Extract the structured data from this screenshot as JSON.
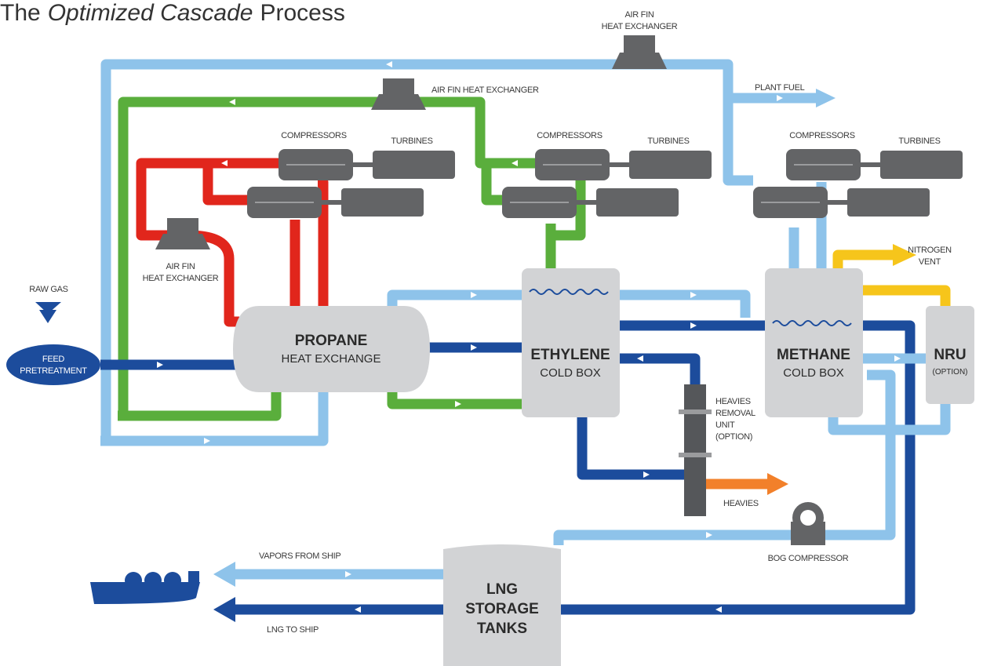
{
  "title": {
    "lead": "The",
    "emphasis": "Optimized Cascade",
    "tail": "Process"
  },
  "labels": {
    "air_fin_top": [
      "AIR FIN",
      "HEAT EXCHANGER"
    ],
    "air_fin_middle": "AIR FIN HEAT EXCHANGER",
    "air_fin_left": [
      "AIR FIN",
      "HEAT EXCHANGER"
    ],
    "plant_fuel": "PLANT FUEL",
    "compressors": [
      "COMPRESSORS",
      "COMPRESSORS",
      "COMPRESSORS"
    ],
    "turbines": [
      "TURBINES",
      "TURBINES",
      "TURBINES"
    ],
    "nitrogen_vent": [
      "NITROGEN",
      "VENT"
    ],
    "raw_gas": "RAW GAS",
    "feed_pretreatment": [
      "FEED",
      "PRETREATMENT"
    ],
    "heavies_removal": [
      "HEAVIES",
      "REMOVAL",
      "UNIT",
      "(OPTION)"
    ],
    "heavies": "HEAVIES",
    "bog_compressor": "BOG COMPRESSOR",
    "vapors_from_ship": "VAPORS FROM SHIP",
    "lng_to_ship": "LNG TO SHIP"
  },
  "units": {
    "propane": [
      "PROPANE",
      "HEAT EXCHANGE"
    ],
    "ethylene": [
      "ETHYLENE",
      "COLD BOX"
    ],
    "methane": [
      "METHANE",
      "COLD BOX"
    ],
    "nru": [
      "NRU",
      "(OPTION)"
    ],
    "lng_storage": [
      "LNG",
      "STORAGE",
      "TANKS"
    ]
  }
}
